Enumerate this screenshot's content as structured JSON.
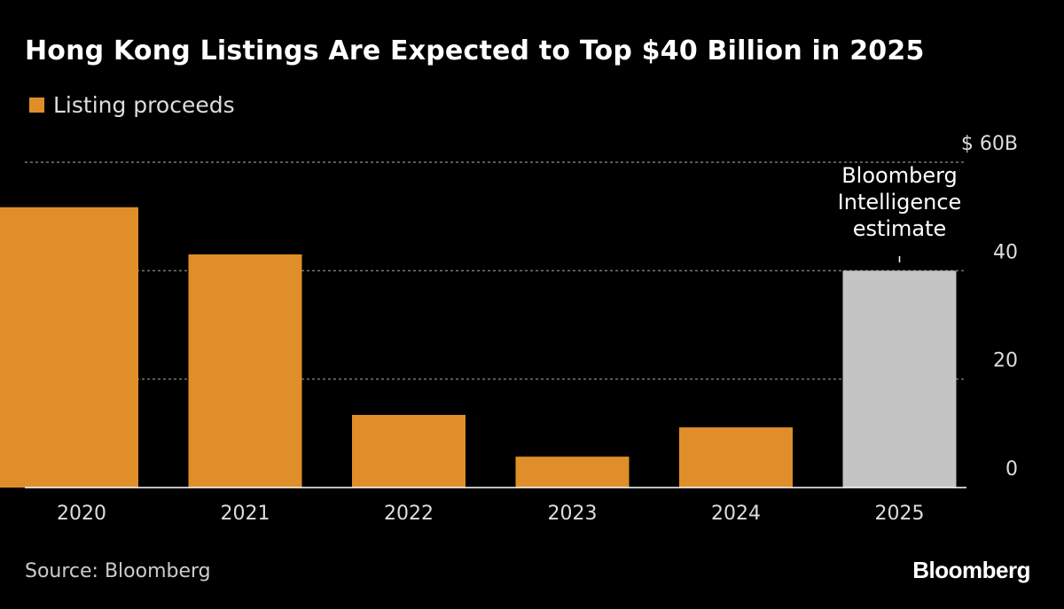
{
  "title": "Hong Kong Listings Are Expected to Top $40 Billion in 2025",
  "source": "Source: Bloomberg",
  "logo": "Bloomberg",
  "chart_data": {
    "type": "bar",
    "title": "Hong Kong Listings Are Expected to Top $40 Billion in 2025",
    "categories": [
      "2020",
      "2021",
      "2022",
      "2023",
      "2024",
      "2025"
    ],
    "series": [
      {
        "name": "Listing proceeds",
        "values": [
          51.7,
          43.0,
          13.4,
          5.7,
          11.1,
          40.0
        ]
      }
    ],
    "estimate_category": "2025",
    "annotation": [
      "Bloomberg",
      "Intelligence",
      "estimate"
    ],
    "ylim": [
      0,
      60
    ],
    "yticks": [
      0,
      20,
      40,
      60
    ],
    "ytick_labels": [
      "0",
      "20",
      "40",
      "$ 60B"
    ],
    "grid": true,
    "legend": "top-left",
    "colors": {
      "actual": "#e08e2a",
      "estimate": "#c4c4c4",
      "grid": "#777777"
    }
  }
}
